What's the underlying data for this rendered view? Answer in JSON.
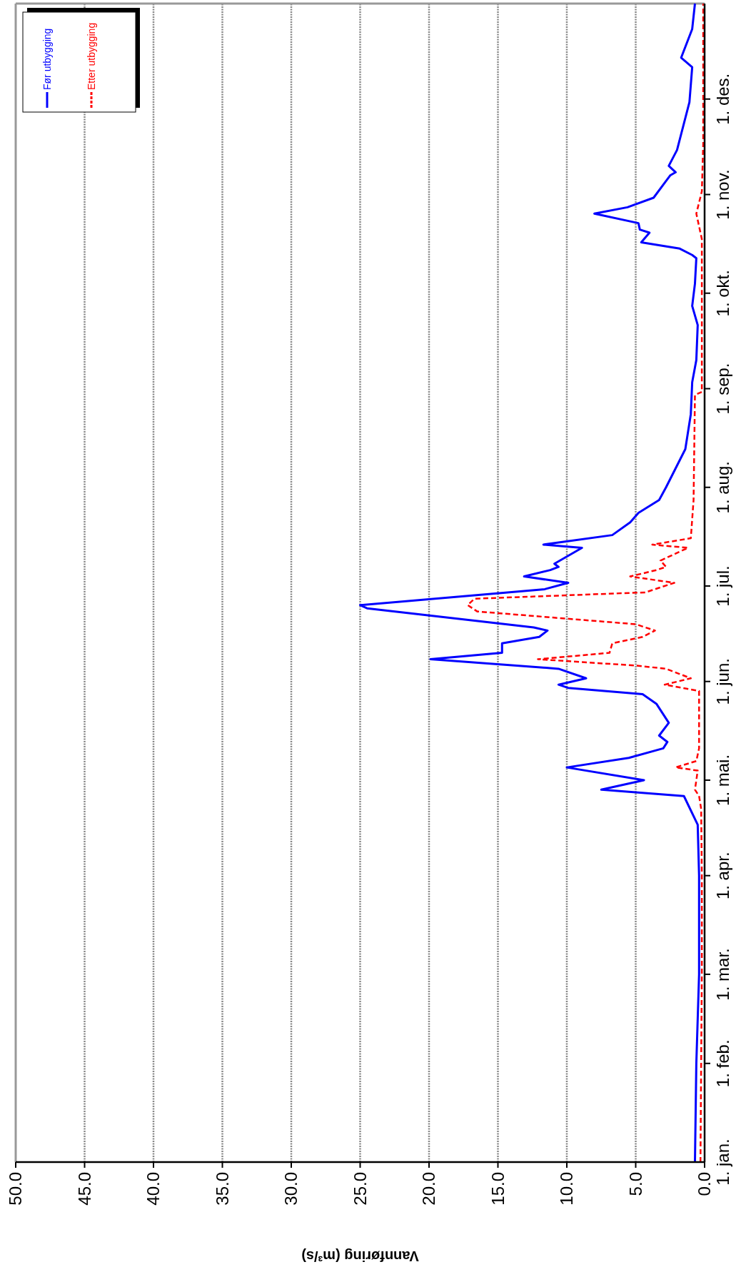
{
  "chart_data": {
    "type": "line",
    "orientation": "horizontal",
    "xlabel": "Vannføring (m³/s)",
    "ylim": [
      "--01-01",
      "--12-31"
    ],
    "yticks": [
      {
        "value": "--01-01",
        "label": "1. jan."
      },
      {
        "value": "--02-01",
        "label": "1. feb."
      },
      {
        "value": "--03-01",
        "label": "1. mar."
      },
      {
        "value": "--04-01",
        "label": "1. apr."
      },
      {
        "value": "--05-01",
        "label": "1. mai."
      },
      {
        "value": "--06-01",
        "label": "1. jun."
      },
      {
        "value": "--07-01",
        "label": "1. jul."
      },
      {
        "value": "--08-01",
        "label": "1. aug."
      },
      {
        "value": "--09-01",
        "label": "1. sep."
      },
      {
        "value": "--10-01",
        "label": "1. okt."
      },
      {
        "value": "--11-01",
        "label": "1. nov."
      },
      {
        "value": "--12-01",
        "label": "1. des."
      }
    ],
    "xlim": [
      50,
      0
    ],
    "xticks": [
      {
        "value": 0,
        "label": "0.0"
      },
      {
        "value": 5,
        "label": "5.0"
      },
      {
        "value": 10,
        "label": "10.0"
      },
      {
        "value": 15,
        "label": "15.0"
      },
      {
        "value": 20,
        "label": "20.0"
      },
      {
        "value": 25,
        "label": "25.0"
      },
      {
        "value": 30,
        "label": "30.0"
      },
      {
        "value": 35,
        "label": "35.0"
      },
      {
        "value": 40,
        "label": "40.0"
      },
      {
        "value": 45,
        "label": "45.0"
      },
      {
        "value": 50,
        "label": "50.0"
      }
    ],
    "grid": "x",
    "legend": "top left",
    "marker": "none",
    "series": [
      {
        "name": "Før utbygging",
        "color": "#0000ff",
        "line_style": "solid",
        "x": [
          "--01-01",
          "--02-01",
          "--03-01",
          "--04-01",
          "--04-17",
          "--04-26",
          "--04-28",
          "--05-01",
          "--05-05",
          "--05-08",
          "--05-11",
          "--05-13",
          "--05-15",
          "--05-19",
          "--05-25",
          "--05-28",
          "--05-30",
          "--05-31",
          "--06-02",
          "--06-05",
          "--06-08",
          "--06-10",
          "--06-13",
          "--06-15",
          "--06-17",
          "--06-18",
          "--06-24",
          "--06-25",
          "--06-30",
          "--07-02",
          "--07-04",
          "--07-06",
          "--07-07",
          "--07-08",
          "--07-13",
          "--07-14",
          "--07-17",
          "--07-21",
          "--07-24",
          "--07-28",
          "--08-01",
          "--08-07",
          "--08-13",
          "--08-24",
          "--09-03",
          "--09-10",
          "--09-21",
          "--09-27",
          "--10-04",
          "--10-12",
          "--10-13",
          "--10-15",
          "--10-17",
          "--10-20",
          "--10-21",
          "--10-23",
          "--10-26",
          "--10-28",
          "--10-31",
          "--11-07",
          "--11-08",
          "--11-10",
          "--11-15",
          "--11-30",
          "--12-11",
          "--12-14",
          "--12-23",
          "--12-31"
        ],
        "values": [
          0.7,
          0.6,
          0.4,
          0.4,
          0.5,
          1.5,
          7.5,
          4.4,
          10.0,
          5.5,
          3.0,
          2.7,
          3.3,
          2.6,
          3.5,
          4.5,
          9.9,
          10.6,
          8.6,
          10.6,
          19.9,
          14.7,
          14.7,
          12.0,
          11.4,
          12.4,
          24.5,
          25.0,
          11.6,
          9.9,
          13.1,
          11.2,
          10.6,
          10.9,
          8.9,
          11.7,
          6.7,
          5.4,
          4.8,
          3.3,
          2.8,
          2.1,
          1.4,
          1.0,
          0.9,
          0.6,
          0.5,
          0.9,
          0.7,
          0.6,
          0.9,
          1.8,
          4.6,
          4.0,
          4.7,
          4.8,
          8.0,
          5.6,
          3.7,
          2.5,
          2.1,
          2.6,
          2.0,
          1.1,
          0.9,
          1.7,
          0.9,
          0.7
        ]
      },
      {
        "name": "Etter utbygging",
        "color": "#ff0000",
        "line_style": "dashed",
        "x": [
          "--01-01",
          "--02-01",
          "--03-01",
          "--04-01",
          "--04-22",
          "--04-26",
          "--04-28",
          "--05-04",
          "--05-05",
          "--05-07",
          "--05-11",
          "--05-29",
          "--05-31",
          "--06-02",
          "--06-05",
          "--06-06",
          "--06-08",
          "--06-10",
          "--06-13",
          "--06-15",
          "--06-17",
          "--06-19",
          "--06-23",
          "--06-25",
          "--06-27",
          "--06-29",
          "--07-02",
          "--07-04",
          "--07-06",
          "--07-07",
          "--07-09",
          "--07-13",
          "--07-14",
          "--07-16",
          "--07-28",
          "--08-30",
          "--08-31",
          "--10-18",
          "--10-26",
          "--11-02",
          "--11-17",
          "--12-31"
        ],
        "values": [
          0.3,
          0.25,
          0.2,
          0.2,
          0.25,
          0.4,
          0.7,
          0.5,
          2.1,
          0.6,
          0.4,
          0.4,
          2.9,
          1.0,
          2.8,
          5.0,
          12.1,
          6.9,
          6.7,
          4.5,
          3.6,
          5.0,
          16.5,
          17.2,
          16.7,
          4.3,
          2.2,
          5.4,
          3.5,
          2.8,
          3.2,
          1.2,
          3.8,
          1.0,
          0.8,
          0.7,
          0.2,
          0.2,
          0.6,
          0.2,
          0.1,
          0.1
        ]
      }
    ]
  }
}
